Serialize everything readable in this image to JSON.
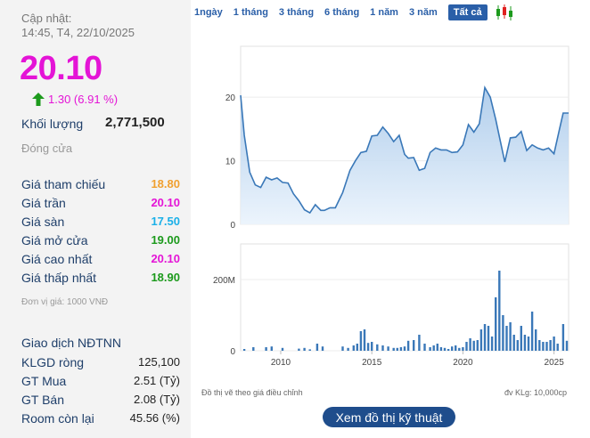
{
  "header": {
    "updated_label": "Cập nhật:",
    "updated_time": "14:45, T4, 22/10/2025",
    "price": "20.10",
    "change": "1.30 (6.91 %)",
    "volume_label": "Khối lượng",
    "volume_value": "2,771,500",
    "status": "Đóng cửa"
  },
  "prices": [
    {
      "label": "Giá tham chiếu",
      "value": "18.80",
      "color": "#f0a030"
    },
    {
      "label": "Giá trần",
      "value": "20.10",
      "color": "#e414d6"
    },
    {
      "label": "Giá sàn",
      "value": "17.50",
      "color": "#1ab0e8"
    },
    {
      "label": "Giá mở cửa",
      "value": "19.00",
      "color": "#1c9a1c"
    },
    {
      "label": "Giá cao nhất",
      "value": "20.10",
      "color": "#e414d6"
    },
    {
      "label": "Giá thấp nhất",
      "value": "18.90",
      "color": "#1c9a1c"
    }
  ],
  "unit_note": "Đơn vị giá: 1000 VNĐ",
  "foreign": {
    "title": "Giao dịch NĐTNN",
    "rows": [
      {
        "label": "KLGD ròng",
        "value": "125,100"
      },
      {
        "label": "GT Mua",
        "value": "2.51 (Tỷ)"
      },
      {
        "label": "GT Bán",
        "value": "2.08 (Tỷ)"
      },
      {
        "label": "Room còn lại",
        "value": "45.56 (%)"
      }
    ]
  },
  "tabs": [
    "1ngày",
    "1 tháng",
    "3 tháng",
    "6 tháng",
    "1 năm",
    "3 năm",
    "Tất cả"
  ],
  "active_tab": "Tất cả",
  "chart_footer_left": "Đồ thị vẽ theo giá điều chỉnh",
  "chart_footer_right": "đv KLg: 10,000cp",
  "tech_button": "Xem đồ thị kỹ thuật",
  "chart_data": {
    "type": "area",
    "price": {
      "yticks": [
        "0",
        "10",
        "20"
      ],
      "ylim": [
        0,
        28
      ],
      "x": [
        2007.8,
        2008.0,
        2008.3,
        2008.6,
        2008.9,
        2009.2,
        2009.5,
        2009.8,
        2010.1,
        2010.4,
        2010.7,
        2011.0,
        2011.3,
        2011.6,
        2011.9,
        2012.2,
        2012.4,
        2012.7,
        2013.0,
        2013.4,
        2013.8,
        2014.1,
        2014.4,
        2014.7,
        2015.0,
        2015.3,
        2015.6,
        2015.9,
        2016.2,
        2016.5,
        2016.8,
        2017.0,
        2017.3,
        2017.6,
        2017.9,
        2018.2,
        2018.5,
        2018.8,
        2019.1,
        2019.4,
        2019.7,
        2020.0,
        2020.3,
        2020.6,
        2020.9,
        2021.2,
        2021.5,
        2021.8,
        2022.0,
        2022.3,
        2022.6,
        2022.9,
        2023.2,
        2023.5,
        2023.8,
        2024.1,
        2024.4,
        2024.7,
        2025.0,
        2025.3,
        2025.5,
        2025.8
      ],
      "y": [
        20.3,
        14.0,
        8.2,
        6.2,
        5.8,
        7.4,
        7.0,
        7.3,
        6.6,
        6.5,
        4.8,
        3.7,
        2.3,
        1.8,
        3.1,
        2.2,
        2.2,
        2.6,
        2.6,
        5.0,
        8.5,
        10.0,
        11.3,
        11.5,
        13.9,
        14.0,
        15.3,
        14.3,
        13.0,
        14.0,
        11.0,
        10.4,
        10.5,
        8.5,
        8.8,
        11.3,
        12.0,
        11.7,
        11.7,
        11.3,
        11.4,
        12.5,
        15.7,
        14.5,
        15.8,
        21.5,
        20.0,
        16.5,
        13.8,
        9.8,
        13.6,
        13.7,
        14.6,
        11.6,
        12.5,
        12.0,
        11.7,
        12.0,
        11.1,
        15.0,
        17.5,
        17.5
      ]
    },
    "volume": {
      "yticks": [
        "0",
        "200M"
      ],
      "x": [
        2008.0,
        2008.5,
        2009.2,
        2009.5,
        2010.1,
        2011.0,
        2011.3,
        2011.6,
        2012.0,
        2012.3,
        2013.4,
        2013.7,
        2014.0,
        2014.2,
        2014.4,
        2014.6,
        2014.8,
        2015.0,
        2015.3,
        2015.6,
        2015.9,
        2016.2,
        2016.4,
        2016.6,
        2016.8,
        2017.0,
        2017.3,
        2017.6,
        2017.9,
        2018.2,
        2018.4,
        2018.6,
        2018.8,
        2019.0,
        2019.2,
        2019.4,
        2019.6,
        2019.8,
        2020.0,
        2020.2,
        2020.4,
        2020.6,
        2020.8,
        2021.0,
        2021.2,
        2021.4,
        2021.6,
        2021.8,
        2022.0,
        2022.2,
        2022.4,
        2022.6,
        2022.8,
        2023.0,
        2023.2,
        2023.4,
        2023.6,
        2023.8,
        2024.0,
        2024.2,
        2024.4,
        2024.6,
        2024.8,
        2025.0,
        2025.2,
        2025.5,
        2025.7
      ],
      "y": [
        5,
        10,
        10,
        12,
        8,
        6,
        8,
        4,
        20,
        12,
        12,
        8,
        15,
        20,
        55,
        60,
        22,
        25,
        18,
        15,
        12,
        8,
        8,
        10,
        12,
        28,
        30,
        45,
        20,
        10,
        15,
        20,
        10,
        8,
        5,
        12,
        15,
        8,
        10,
        25,
        35,
        28,
        30,
        60,
        75,
        70,
        40,
        150,
        225,
        100,
        70,
        80,
        45,
        30,
        70,
        45,
        40,
        110,
        60,
        30,
        25,
        25,
        30,
        40,
        20,
        75,
        28
      ]
    }
  }
}
